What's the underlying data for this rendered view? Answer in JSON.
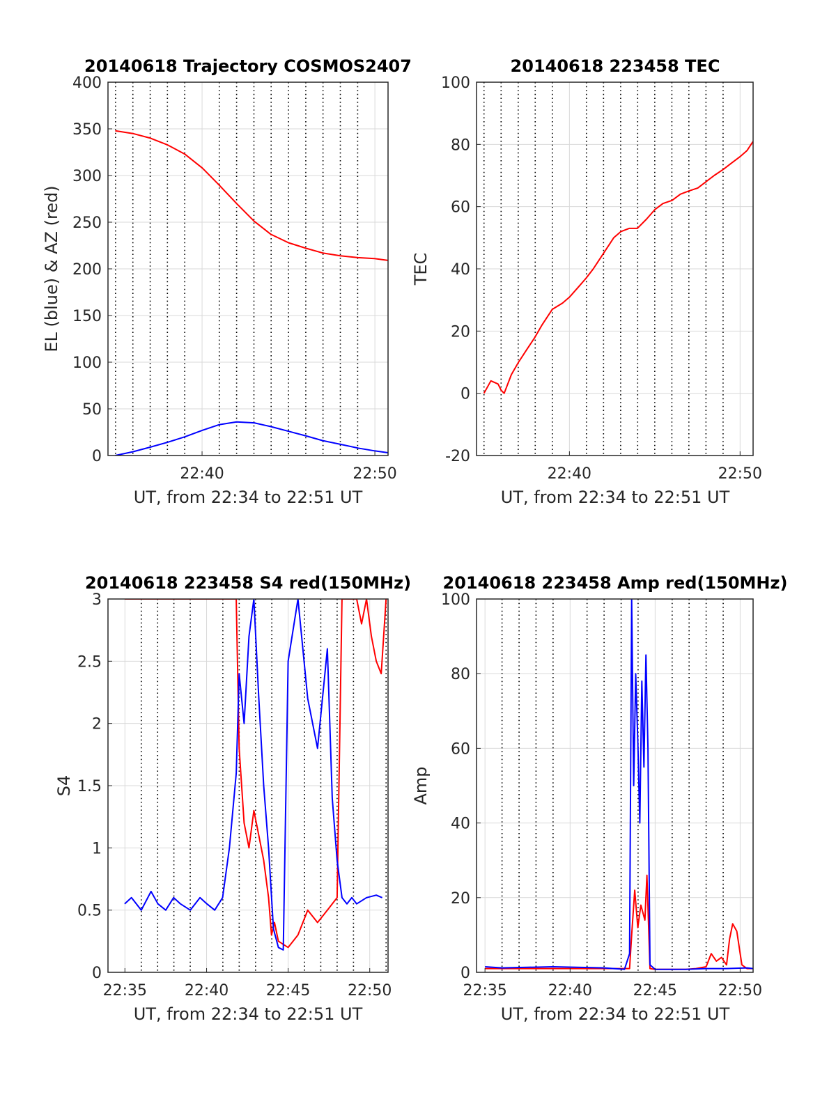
{
  "figure": {
    "background": "#ffffff"
  },
  "colors": {
    "red": "#ff0000",
    "blue": "#0000ff",
    "grid": "#d9d9d9",
    "axis": "#262626"
  },
  "chart_data": [
    {
      "id": "trajectory",
      "type": "line",
      "title": "20140618 Trajectory COSMOS2407",
      "xlabel": "UT, from 22:34 to 22:51 UT",
      "ylabel": "EL (blue) & AZ (red)",
      "xlim": [
        22.576,
        22.846
      ],
      "ylim": [
        0,
        400
      ],
      "yticks": [
        0,
        50,
        100,
        150,
        200,
        250,
        300,
        350,
        400
      ],
      "ytick_labels": [
        "0",
        "50",
        "100",
        "150",
        "200",
        "250",
        "300",
        "350",
        "400"
      ],
      "xticks": [
        22.6667,
        22.8333
      ],
      "xtick_labels": [
        "22:40",
        "22:50"
      ],
      "dotted_minute_lines": [
        22.5833,
        22.6,
        22.6167,
        22.6333,
        22.65,
        22.6833,
        22.7,
        22.7167,
        22.7333,
        22.75,
        22.7667,
        22.7833,
        22.8,
        22.8167,
        22.85
      ],
      "grid": true,
      "series": [
        {
          "color": "#ff0000",
          "x": [
            22.583,
            22.6,
            22.617,
            22.633,
            22.65,
            22.667,
            22.683,
            22.7,
            22.717,
            22.733,
            22.75,
            22.767,
            22.783,
            22.8,
            22.817,
            22.833,
            22.846
          ],
          "y": [
            348,
            345,
            340,
            333,
            323,
            308,
            290,
            270,
            251,
            237,
            228,
            222,
            217,
            214,
            212,
            211,
            209
          ]
        },
        {
          "color": "#0000ff",
          "x": [
            22.583,
            22.6,
            22.617,
            22.633,
            22.65,
            22.667,
            22.683,
            22.7,
            22.717,
            22.733,
            22.75,
            22.767,
            22.783,
            22.8,
            22.817,
            22.833,
            22.846
          ],
          "y": [
            0,
            4,
            9,
            14,
            20,
            27,
            33,
            36,
            35,
            31,
            26,
            21,
            16,
            12,
            8,
            5,
            3
          ]
        }
      ]
    },
    {
      "id": "tec",
      "type": "line",
      "title": "20140618 223458 TEC",
      "xlabel": "UT, from 22:34 to 22:51 UT",
      "ylabel": "TEC",
      "xlim": [
        22.576,
        22.846
      ],
      "ylim": [
        -20,
        100
      ],
      "yticks": [
        -20,
        0,
        20,
        40,
        60,
        80,
        100
      ],
      "ytick_labels": [
        "-20",
        "0",
        "20",
        "40",
        "60",
        "80",
        "100"
      ],
      "xticks": [
        22.6667,
        22.8333
      ],
      "xtick_labels": [
        "22:40",
        "22:50"
      ],
      "dotted_minute_lines": [
        22.5833,
        22.6,
        22.6167,
        22.6333,
        22.65,
        22.6833,
        22.7,
        22.7167,
        22.7333,
        22.75,
        22.7667,
        22.7833,
        22.8,
        22.8167,
        22.85
      ],
      "grid": true,
      "series": [
        {
          "color": "#ff0000",
          "x": [
            22.5833,
            22.59,
            22.597,
            22.6,
            22.603,
            22.61,
            22.617,
            22.625,
            22.633,
            22.64,
            22.65,
            22.66,
            22.667,
            22.675,
            22.683,
            22.69,
            22.7,
            22.71,
            22.717,
            22.725,
            22.733,
            22.742,
            22.75,
            22.758,
            22.767,
            22.775,
            22.783,
            22.792,
            22.8,
            22.808,
            22.817,
            22.825,
            22.833,
            22.84,
            22.846
          ],
          "y": [
            0,
            4,
            3,
            1,
            0,
            6,
            10,
            14,
            18,
            22,
            27,
            29,
            31,
            34,
            37,
            40,
            45,
            50,
            52,
            53,
            53,
            56,
            59,
            61,
            62,
            64,
            65,
            66,
            68,
            70,
            72,
            74,
            76,
            78,
            81
          ]
        }
      ]
    },
    {
      "id": "s4",
      "type": "line",
      "title": "20140618 223458 S4 red(150MHz)",
      "xlabel": "UT, from 22:34 to 22:51 UT",
      "ylabel": "S4",
      "xlim": [
        22.566,
        22.852
      ],
      "ylim": [
        0,
        3
      ],
      "yticks": [
        0,
        0.5,
        1,
        1.5,
        2,
        2.5,
        3
      ],
      "ytick_labels": [
        "0",
        "0.5",
        "1",
        "1.5",
        "2",
        "2.5",
        "3"
      ],
      "xticks": [
        22.5833,
        22.6667,
        22.75,
        22.8333
      ],
      "xtick_labels": [
        "22:35",
        "22:40",
        "22:45",
        "22:50"
      ],
      "dotted_minute_lines": [
        22.6,
        22.6167,
        22.6333,
        22.65,
        22.6833,
        22.7,
        22.7167,
        22.7333,
        22.7667,
        22.7833,
        22.8,
        22.8167,
        22.85
      ],
      "grid": true,
      "series": [
        {
          "color": "#ff0000",
          "x": [
            22.583,
            22.6,
            22.617,
            22.633,
            22.65,
            22.667,
            22.683,
            22.69,
            22.697,
            22.7,
            22.705,
            22.71,
            22.715,
            22.72,
            22.725,
            22.73,
            22.733,
            22.736,
            22.74,
            22.75,
            22.76,
            22.77,
            22.78,
            22.79,
            22.8,
            22.805,
            22.81,
            22.815,
            22.82,
            22.825,
            22.83,
            22.835,
            22.84,
            22.845,
            22.85
          ],
          "y": [
            3,
            3,
            3,
            3,
            3,
            3,
            3,
            3,
            3,
            1.8,
            1.2,
            1.0,
            1.3,
            1.1,
            0.9,
            0.6,
            0.3,
            0.4,
            0.25,
            0.2,
            0.3,
            0.5,
            0.4,
            0.5,
            0.6,
            3,
            3,
            3,
            3,
            2.8,
            3,
            2.7,
            2.5,
            2.4,
            3
          ]
        },
        {
          "color": "#0000ff",
          "x": [
            22.583,
            22.59,
            22.6,
            22.61,
            22.617,
            22.625,
            22.633,
            22.64,
            22.65,
            22.66,
            22.667,
            22.675,
            22.683,
            22.69,
            22.697,
            22.7,
            22.705,
            22.71,
            22.715,
            22.72,
            22.725,
            22.73,
            22.735,
            22.74,
            22.745,
            22.75,
            22.76,
            22.77,
            22.78,
            22.79,
            22.795,
            22.8,
            22.805,
            22.81,
            22.815,
            22.82,
            22.83,
            22.84,
            22.846
          ],
          "y": [
            0.55,
            0.6,
            0.5,
            0.65,
            0.55,
            0.5,
            0.6,
            0.55,
            0.5,
            0.6,
            0.55,
            0.5,
            0.6,
            1.0,
            1.6,
            2.4,
            2.0,
            2.7,
            3.0,
            2.2,
            1.5,
            1.0,
            0.35,
            0.2,
            0.18,
            2.5,
            3.0,
            2.2,
            1.8,
            2.6,
            1.4,
            0.9,
            0.6,
            0.55,
            0.6,
            0.55,
            0.6,
            0.62,
            0.6
          ]
        }
      ]
    },
    {
      "id": "amp",
      "type": "line",
      "title": "20140618 223458 Amp red(150MHz)",
      "xlabel": "UT, from 22:34 to 22:51 UT",
      "ylabel": "Amp",
      "xlim": [
        22.575,
        22.846
      ],
      "ylim": [
        0,
        100
      ],
      "yticks": [
        0,
        20,
        40,
        60,
        80,
        100
      ],
      "ytick_labels": [
        "0",
        "20",
        "40",
        "60",
        "80",
        "100"
      ],
      "xticks": [
        22.5833,
        22.6667,
        22.75,
        22.8333
      ],
      "xtick_labels": [
        "22:35",
        "22:40",
        "22:45",
        "22:50"
      ],
      "dotted_minute_lines": [
        22.6,
        22.6167,
        22.6333,
        22.65,
        22.6833,
        22.7,
        22.7167,
        22.7333,
        22.7667,
        22.7833,
        22.8,
        22.8167,
        22.85
      ],
      "grid": true,
      "series": [
        {
          "color": "#ff0000",
          "x": [
            22.5833,
            22.6,
            22.65,
            22.7,
            22.725,
            22.727,
            22.73,
            22.733,
            22.736,
            22.74,
            22.742,
            22.745,
            22.75,
            22.78,
            22.79,
            22.8,
            22.805,
            22.81,
            22.815,
            22.82,
            22.823,
            22.826,
            22.83,
            22.835,
            22.84,
            22.846
          ],
          "y": [
            1,
            1,
            1,
            1,
            1,
            10,
            22,
            12,
            18,
            14,
            26,
            1,
            0.8,
            0.8,
            1,
            1.5,
            5,
            3,
            4,
            2,
            9,
            13,
            11,
            2,
            1,
            1
          ]
        },
        {
          "color": "#0000ff",
          "x": [
            22.5833,
            22.6,
            22.65,
            22.7,
            22.72,
            22.725,
            22.727,
            22.729,
            22.731,
            22.733,
            22.735,
            22.737,
            22.739,
            22.741,
            22.743,
            22.745,
            22.75,
            22.78,
            22.8,
            22.82,
            22.84,
            22.846
          ],
          "y": [
            1.5,
            1.2,
            1.5,
            1.2,
            0.8,
            5,
            100,
            50,
            80,
            62,
            40,
            78,
            55,
            85,
            60,
            2,
            0.8,
            0.8,
            1,
            1,
            1.2,
            1
          ]
        }
      ]
    }
  ]
}
